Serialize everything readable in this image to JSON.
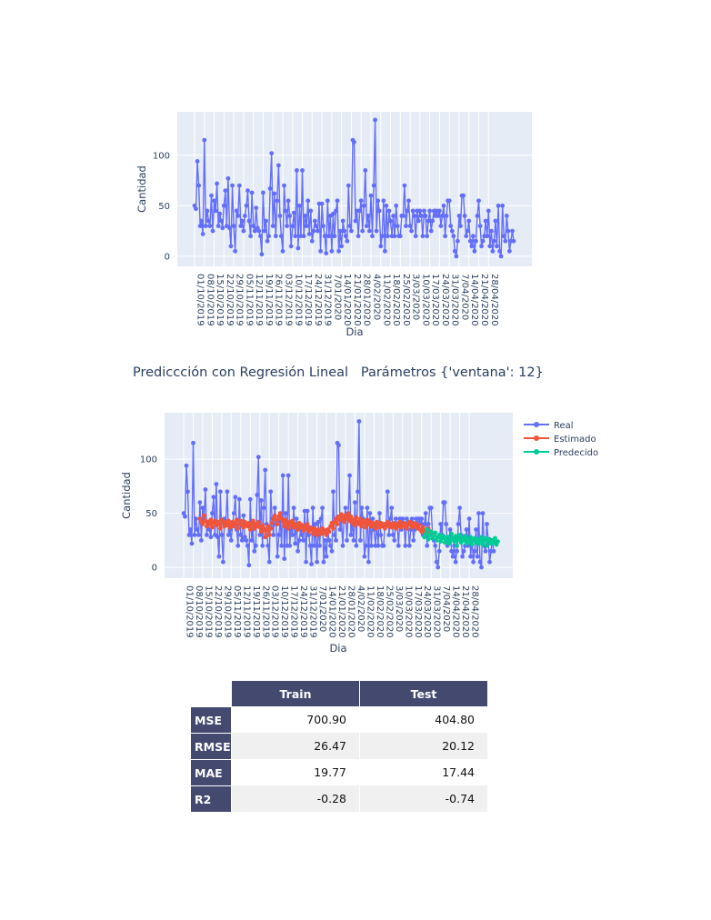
{
  "colors": {
    "real": "#636efa",
    "estimado": "#ef553b",
    "predecido": "#00cc96",
    "plot_bg": "#e5ecf6",
    "header_bg": "#444a6f"
  },
  "chart1": {
    "ylabel": "Cantidad",
    "xlabel": "Dia"
  },
  "chart2": {
    "title": "Prediccción con Regresión Lineal   Parámetros {'ventana': 12}",
    "ylabel": "Cantidad",
    "xlabel": "Dia",
    "legend": [
      "Real",
      "Estimado",
      "Predecido"
    ]
  },
  "chart_data": [
    {
      "type": "line",
      "title": "",
      "xlabel": "Dia",
      "ylabel": "Cantidad",
      "ylim": [
        -10,
        143
      ],
      "x_start": "01/10/2019",
      "x_end": "30/04/2020",
      "yticks": [
        0,
        50,
        100
      ],
      "xticks": [
        "01/10/2019",
        "08/10/2019",
        "15/10/2019",
        "22/10/2019",
        "29/10/2019",
        "05/11/2019",
        "12/11/2019",
        "19/11/2019",
        "26/11/2019",
        "03/12/2019",
        "10/12/2019",
        "17/12/2019",
        "24/12/2019",
        "31/12/2019",
        "7/01/2020",
        "14/01/2020",
        "21/01/2020",
        "28/01/2020",
        "4/02/2020",
        "11/02/2020",
        "18/02/2020",
        "25/02/2020",
        "3/03/2020",
        "10/03/2020",
        "17/03/2020",
        "24/03/2020",
        "31/03/2020",
        "7/04/2020",
        "14/04/2020",
        "21/04/2020",
        "28/04/2020"
      ],
      "grid": true,
      "series": [
        {
          "name": "",
          "values": [
            50,
            47,
            94,
            70,
            30,
            35,
            22,
            115,
            30,
            45,
            35,
            30,
            60,
            25,
            55,
            45,
            72,
            30,
            42,
            35,
            28,
            50,
            65,
            30,
            77,
            28,
            10,
            70,
            30,
            5,
            45,
            40,
            70,
            30,
            35,
            25,
            40,
            50,
            65,
            35,
            20,
            63,
            30,
            25,
            48,
            28,
            25,
            20,
            2,
            63,
            25,
            35,
            15,
            20,
            67,
            102,
            30,
            62,
            20,
            55,
            90,
            40,
            20,
            5,
            70,
            45,
            30,
            55,
            40,
            10,
            30,
            43,
            20,
            85,
            8,
            50,
            20,
            85,
            20,
            40,
            30,
            55,
            22,
            45,
            15,
            25,
            35,
            30,
            25,
            52,
            5,
            52,
            30,
            20,
            3,
            55,
            20,
            40,
            5,
            42,
            20,
            45,
            55,
            5,
            25,
            10,
            35,
            25,
            20,
            15,
            70,
            30,
            25,
            115,
            113,
            35,
            45,
            20,
            45,
            55,
            25,
            50,
            85,
            30,
            40,
            25,
            60,
            20,
            70,
            135,
            25,
            55,
            45,
            10,
            20,
            55,
            5,
            50,
            20,
            45,
            35,
            20,
            40,
            20,
            50,
            30,
            20,
            20,
            40,
            40,
            70,
            30,
            45,
            55,
            30,
            25,
            45,
            40,
            20,
            45,
            35,
            45,
            40,
            20,
            45,
            40,
            20,
            35,
            45,
            25,
            35,
            45,
            40,
            45,
            40,
            45,
            30,
            40,
            50,
            20,
            40,
            55,
            55,
            30,
            25,
            20,
            5,
            0,
            15,
            40,
            30,
            60,
            60,
            40,
            20,
            25,
            35,
            15,
            10,
            20,
            5,
            15,
            40,
            55,
            30,
            10,
            15,
            20,
            35,
            20,
            45,
            10,
            25,
            5,
            15,
            35,
            10,
            50,
            5,
            0,
            50,
            20,
            15,
            40,
            25,
            5,
            15,
            25,
            15
          ]
        }
      ]
    },
    {
      "type": "line",
      "title": "Prediccción con Regresión Lineal   Parámetros {'ventana': 12}",
      "xlabel": "Dia",
      "ylabel": "Cantidad",
      "ylim": [
        -10,
        143
      ],
      "x_start": "01/10/2019",
      "x_end": "30/04/2020",
      "yticks": [
        0,
        50,
        100
      ],
      "xticks": [
        "01/10/2019",
        "08/10/2019",
        "15/10/2019",
        "22/10/2019",
        "29/10/2019",
        "05/11/2019",
        "12/11/2019",
        "19/11/2019",
        "26/11/2019",
        "03/12/2019",
        "10/12/2019",
        "17/12/2019",
        "24/12/2019",
        "31/12/2019",
        "7/01/2020",
        "14/01/2020",
        "21/01/2020",
        "28/01/2020",
        "4/02/2020",
        "11/02/2020",
        "18/02/2020",
        "25/02/2020",
        "3/03/2020",
        "10/03/2020",
        "17/03/2020",
        "24/03/2020",
        "31/03/2020",
        "7/04/2020",
        "14/04/2020",
        "21/04/2020",
        "28/04/2020"
      ],
      "grid": true,
      "legend_position": "right",
      "series": [
        {
          "name": "Real",
          "start_index": 0,
          "values": [
            50,
            47,
            94,
            70,
            30,
            35,
            22,
            115,
            30,
            45,
            35,
            30,
            60,
            25,
            55,
            45,
            72,
            30,
            42,
            35,
            28,
            50,
            65,
            30,
            77,
            28,
            10,
            70,
            30,
            5,
            45,
            40,
            70,
            30,
            35,
            25,
            40,
            50,
            65,
            35,
            20,
            63,
            30,
            25,
            48,
            28,
            25,
            20,
            2,
            63,
            25,
            35,
            15,
            20,
            67,
            102,
            30,
            62,
            20,
            55,
            90,
            40,
            20,
            5,
            70,
            45,
            30,
            55,
            40,
            10,
            30,
            43,
            20,
            85,
            8,
            50,
            20,
            85,
            20,
            40,
            30,
            55,
            22,
            45,
            15,
            25,
            35,
            30,
            25,
            52,
            5,
            52,
            30,
            20,
            3,
            55,
            20,
            40,
            5,
            42,
            20,
            45,
            55,
            5,
            25,
            10,
            35,
            25,
            20,
            15,
            70,
            30,
            25,
            115,
            113,
            35,
            45,
            20,
            45,
            55,
            25,
            50,
            85,
            30,
            40,
            25,
            60,
            20,
            70,
            135,
            25,
            55,
            45,
            10,
            20,
            55,
            5,
            50,
            20,
            45,
            35,
            20,
            40,
            20,
            50,
            30,
            20,
            20,
            40,
            40,
            70,
            30,
            45,
            55,
            30,
            25,
            45,
            40,
            20,
            45,
            35,
            45,
            40,
            20,
            45,
            40,
            20,
            35,
            45,
            25,
            35,
            45,
            40,
            45,
            40,
            45,
            30,
            40,
            50,
            20,
            40,
            55,
            55,
            30,
            25,
            20,
            5,
            0,
            15,
            40,
            30,
            60,
            60,
            40,
            20,
            25,
            35,
            15,
            10,
            20,
            5,
            15,
            40,
            55,
            30,
            10,
            15,
            20,
            35,
            20,
            45,
            10,
            25,
            5,
            15,
            35,
            10,
            50,
            5,
            0,
            50,
            20,
            15,
            40,
            25,
            5,
            15,
            25,
            15
          ]
        },
        {
          "name": "Estimado",
          "start_index": 12,
          "values": [
            45,
            42,
            40,
            48,
            43,
            38,
            42,
            40,
            44,
            37,
            41,
            43,
            39,
            42,
            40,
            36,
            44,
            41,
            38,
            42,
            39,
            43,
            37,
            40,
            42,
            38,
            41,
            44,
            36,
            40,
            43,
            39,
            37,
            42,
            40,
            38,
            41,
            35,
            39,
            43,
            36,
            40,
            38,
            42,
            37,
            33,
            39,
            36,
            28,
            34,
            38,
            30,
            36,
            41,
            45,
            48,
            44,
            40,
            47,
            50,
            45,
            42,
            38,
            44,
            40,
            36,
            42,
            39,
            43,
            37,
            40,
            38,
            35,
            41,
            37,
            39,
            34,
            38,
            36,
            40,
            33,
            37,
            35,
            31,
            36,
            34,
            30,
            35,
            33,
            31,
            36,
            32,
            34,
            30,
            35,
            33,
            38,
            41,
            36,
            42,
            45,
            40,
            47,
            44,
            49,
            46,
            42,
            48,
            45,
            50,
            43,
            47,
            41,
            44,
            39,
            46,
            42,
            40,
            45,
            38,
            43,
            41,
            37,
            44,
            40,
            42,
            38,
            41,
            39,
            36,
            42,
            40,
            37,
            41,
            38,
            40,
            36,
            39,
            42,
            38,
            40,
            37,
            41,
            39,
            36,
            40,
            38,
            42,
            37,
            39,
            41,
            38,
            36,
            40,
            42,
            39,
            37,
            41,
            38,
            40,
            36,
            39,
            35,
            33,
            37,
            32,
            34,
            31,
            36,
            33,
            30
          ]
        },
        {
          "name": "Predecido",
          "start_index": 177,
          "values": [
            28,
            31,
            35,
            26,
            30,
            33,
            27,
            29,
            32,
            25,
            28,
            30,
            24,
            27,
            29,
            23,
            26,
            28,
            22,
            25,
            31,
            27,
            24,
            29,
            20,
            26,
            30,
            23,
            27,
            25,
            29,
            22,
            26,
            24,
            28,
            21,
            25,
            27,
            23,
            26,
            22,
            24,
            28,
            21,
            25,
            27,
            20,
            24,
            26,
            22,
            25,
            23,
            27,
            21,
            24
          ]
        }
      ]
    }
  ],
  "table": {
    "columns": [
      "Train",
      "Test"
    ],
    "rows": [
      {
        "label": "MSE",
        "train": "700.90",
        "test": "404.80"
      },
      {
        "label": "RMSE",
        "train": "26.47",
        "test": "20.12"
      },
      {
        "label": "MAE",
        "train": "19.77",
        "test": "17.44"
      },
      {
        "label": "R2",
        "train": "-0.28",
        "test": "-0.74"
      }
    ]
  }
}
